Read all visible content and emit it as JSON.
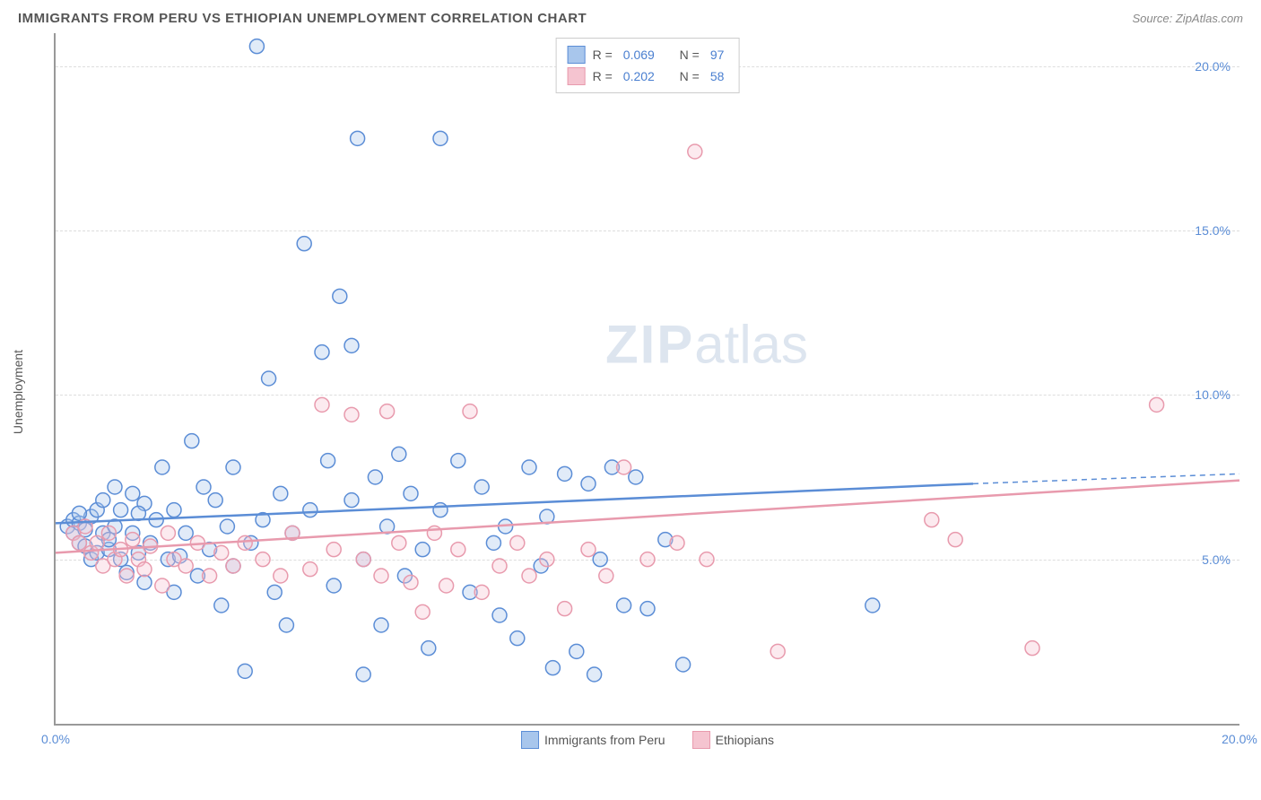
{
  "header": {
    "title": "IMMIGRANTS FROM PERU VS ETHIOPIAN UNEMPLOYMENT CORRELATION CHART",
    "source": "Source: ZipAtlas.com"
  },
  "watermark": {
    "zip": "ZIP",
    "atlas": "atlas"
  },
  "chart": {
    "type": "scatter",
    "y_axis_label": "Unemployment",
    "x_range": [
      0,
      20
    ],
    "y_range": [
      0,
      21
    ],
    "x_ticks": [
      {
        "value": 0,
        "label": "0.0%"
      },
      {
        "value": 20,
        "label": "20.0%"
      }
    ],
    "y_ticks": [
      {
        "value": 5,
        "label": "5.0%"
      },
      {
        "value": 10,
        "label": "10.0%"
      },
      {
        "value": 15,
        "label": "15.0%"
      },
      {
        "value": 20,
        "label": "20.0%"
      }
    ],
    "grid_color": "#dddddd",
    "axis_color": "#999999",
    "background_color": "#ffffff",
    "marker_radius": 8,
    "marker_stroke_width": 1.5,
    "marker_fill_opacity": 0.35,
    "line_width": 2.5,
    "series": [
      {
        "name": "Immigrants from Peru",
        "color_stroke": "#5b8dd6",
        "color_fill": "#a8c6ec",
        "r_value": "0.069",
        "n_value": "97",
        "trendline": {
          "x1": 0,
          "y1": 6.1,
          "x2": 15.5,
          "y2": 7.3,
          "dash_x2": 20,
          "dash_y2": 7.6
        },
        "points": [
          [
            0.2,
            6.0
          ],
          [
            0.3,
            5.8
          ],
          [
            0.3,
            6.2
          ],
          [
            0.4,
            5.5
          ],
          [
            0.4,
            6.1
          ],
          [
            0.5,
            5.9
          ],
          [
            0.5,
            5.4
          ],
          [
            0.6,
            6.3
          ],
          [
            0.6,
            5.0
          ],
          [
            0.7,
            6.5
          ],
          [
            0.7,
            5.2
          ],
          [
            0.8,
            5.8
          ],
          [
            0.8,
            6.8
          ],
          [
            0.9,
            5.3
          ],
          [
            1.0,
            6.0
          ],
          [
            1.0,
            7.2
          ],
          [
            1.1,
            5.0
          ],
          [
            1.1,
            6.5
          ],
          [
            1.2,
            4.6
          ],
          [
            1.3,
            5.8
          ],
          [
            1.3,
            7.0
          ],
          [
            1.4,
            5.2
          ],
          [
            1.5,
            6.7
          ],
          [
            1.5,
            4.3
          ],
          [
            1.6,
            5.5
          ],
          [
            1.7,
            6.2
          ],
          [
            1.8,
            7.8
          ],
          [
            1.9,
            5.0
          ],
          [
            2.0,
            6.5
          ],
          [
            2.0,
            4.0
          ],
          [
            2.2,
            5.8
          ],
          [
            2.3,
            8.6
          ],
          [
            2.4,
            4.5
          ],
          [
            2.5,
            7.2
          ],
          [
            2.6,
            5.3
          ],
          [
            2.8,
            3.6
          ],
          [
            2.9,
            6.0
          ],
          [
            3.0,
            7.8
          ],
          [
            3.0,
            4.8
          ],
          [
            3.2,
            1.6
          ],
          [
            3.3,
            5.5
          ],
          [
            3.4,
            20.6
          ],
          [
            3.5,
            6.2
          ],
          [
            3.6,
            10.5
          ],
          [
            3.7,
            4.0
          ],
          [
            3.8,
            7.0
          ],
          [
            3.9,
            3.0
          ],
          [
            4.0,
            5.8
          ],
          [
            4.2,
            14.6
          ],
          [
            4.3,
            6.5
          ],
          [
            4.5,
            11.3
          ],
          [
            4.6,
            8.0
          ],
          [
            4.7,
            4.2
          ],
          [
            4.8,
            13.0
          ],
          [
            5.0,
            11.5
          ],
          [
            5.0,
            6.8
          ],
          [
            5.1,
            17.8
          ],
          [
            5.2,
            1.5
          ],
          [
            5.2,
            5.0
          ],
          [
            5.4,
            7.5
          ],
          [
            5.5,
            3.0
          ],
          [
            5.6,
            6.0
          ],
          [
            5.8,
            8.2
          ],
          [
            5.9,
            4.5
          ],
          [
            6.0,
            7.0
          ],
          [
            6.2,
            5.3
          ],
          [
            6.3,
            2.3
          ],
          [
            6.5,
            17.8
          ],
          [
            6.5,
            6.5
          ],
          [
            6.8,
            8.0
          ],
          [
            7.0,
            4.0
          ],
          [
            7.2,
            7.2
          ],
          [
            7.4,
            5.5
          ],
          [
            7.5,
            3.3
          ],
          [
            7.6,
            6.0
          ],
          [
            7.8,
            2.6
          ],
          [
            8.0,
            7.8
          ],
          [
            8.2,
            4.8
          ],
          [
            8.3,
            6.3
          ],
          [
            8.4,
            1.7
          ],
          [
            8.6,
            7.6
          ],
          [
            8.8,
            2.2
          ],
          [
            9.0,
            7.3
          ],
          [
            9.1,
            1.5
          ],
          [
            9.2,
            5.0
          ],
          [
            9.4,
            7.8
          ],
          [
            9.6,
            3.6
          ],
          [
            9.8,
            7.5
          ],
          [
            10.0,
            3.5
          ],
          [
            10.3,
            5.6
          ],
          [
            10.6,
            1.8
          ],
          [
            13.8,
            3.6
          ],
          [
            0.4,
            6.4
          ],
          [
            0.9,
            5.6
          ],
          [
            1.4,
            6.4
          ],
          [
            2.1,
            5.1
          ],
          [
            2.7,
            6.8
          ]
        ]
      },
      {
        "name": "Ethiopians",
        "color_stroke": "#e89aad",
        "color_fill": "#f5c4d0",
        "r_value": "0.202",
        "n_value": "58",
        "trendline": {
          "x1": 0,
          "y1": 5.2,
          "x2": 20,
          "y2": 7.4
        },
        "points": [
          [
            0.3,
            5.8
          ],
          [
            0.4,
            5.5
          ],
          [
            0.5,
            6.0
          ],
          [
            0.6,
            5.2
          ],
          [
            0.7,
            5.5
          ],
          [
            0.8,
            4.8
          ],
          [
            0.9,
            5.8
          ],
          [
            1.0,
            5.0
          ],
          [
            1.1,
            5.3
          ],
          [
            1.2,
            4.5
          ],
          [
            1.3,
            5.6
          ],
          [
            1.4,
            5.0
          ],
          [
            1.5,
            4.7
          ],
          [
            1.6,
            5.4
          ],
          [
            1.8,
            4.2
          ],
          [
            1.9,
            5.8
          ],
          [
            2.0,
            5.0
          ],
          [
            2.2,
            4.8
          ],
          [
            2.4,
            5.5
          ],
          [
            2.6,
            4.5
          ],
          [
            2.8,
            5.2
          ],
          [
            3.0,
            4.8
          ],
          [
            3.2,
            5.5
          ],
          [
            3.5,
            5.0
          ],
          [
            3.8,
            4.5
          ],
          [
            4.0,
            5.8
          ],
          [
            4.3,
            4.7
          ],
          [
            4.5,
            9.7
          ],
          [
            4.7,
            5.3
          ],
          [
            5.0,
            9.4
          ],
          [
            5.2,
            5.0
          ],
          [
            5.5,
            4.5
          ],
          [
            5.6,
            9.5
          ],
          [
            5.8,
            5.5
          ],
          [
            6.0,
            4.3
          ],
          [
            6.2,
            3.4
          ],
          [
            6.4,
            5.8
          ],
          [
            6.6,
            4.2
          ],
          [
            6.8,
            5.3
          ],
          [
            7.0,
            9.5
          ],
          [
            7.2,
            4.0
          ],
          [
            7.5,
            4.8
          ],
          [
            7.8,
            5.5
          ],
          [
            8.0,
            4.5
          ],
          [
            8.3,
            5.0
          ],
          [
            8.6,
            3.5
          ],
          [
            9.0,
            5.3
          ],
          [
            9.3,
            4.5
          ],
          [
            9.6,
            7.8
          ],
          [
            10.0,
            5.0
          ],
          [
            10.5,
            5.5
          ],
          [
            10.8,
            17.4
          ],
          [
            11.0,
            5.0
          ],
          [
            12.2,
            2.2
          ],
          [
            14.8,
            6.2
          ],
          [
            15.2,
            5.6
          ],
          [
            16.5,
            2.3
          ],
          [
            18.6,
            9.7
          ]
        ]
      }
    ],
    "legend_top_labels": {
      "r_prefix": "R =",
      "n_prefix": "N ="
    },
    "legend_bottom": [
      {
        "swatch_fill": "#a8c6ec",
        "swatch_stroke": "#5b8dd6",
        "label": "Immigrants from Peru"
      },
      {
        "swatch_fill": "#f5c4d0",
        "swatch_stroke": "#e89aad",
        "label": "Ethiopians"
      }
    ]
  }
}
